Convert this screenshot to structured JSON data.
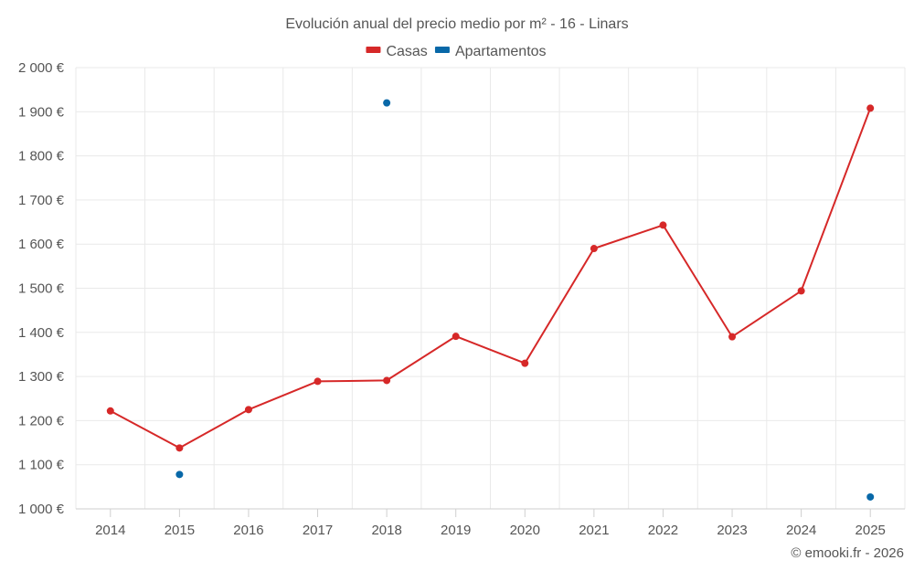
{
  "chart_data": {
    "type": "line",
    "title": "Evolución anual del precio medio por m² - 16 - Linars",
    "categories": [
      "2014",
      "2015",
      "2016",
      "2017",
      "2018",
      "2019",
      "2020",
      "2021",
      "2022",
      "2023",
      "2024",
      "2025"
    ],
    "series": [
      {
        "name": "Casas",
        "color": "#d62828",
        "style": "line",
        "values": [
          1222,
          1138,
          1225,
          1289,
          1291,
          1391,
          1330,
          1590,
          1643,
          1390,
          1494,
          1908
        ]
      },
      {
        "name": "Apartamentos",
        "color": "#0868a8",
        "style": "points",
        "values": [
          null,
          1078,
          null,
          null,
          1920,
          null,
          null,
          null,
          null,
          null,
          null,
          1027
        ]
      }
    ],
    "ylim": [
      1000,
      2000
    ],
    "yticks": [
      1000,
      1100,
      1200,
      1300,
      1400,
      1500,
      1600,
      1700,
      1800,
      1900,
      2000
    ],
    "ytick_labels": [
      "1 000 €",
      "1 100 €",
      "1 200 €",
      "1 300 €",
      "1 400 €",
      "1 500 €",
      "1 600 €",
      "1 700 €",
      "1 800 €",
      "1 900 €",
      "2 000 €"
    ],
    "xlabel": "",
    "ylabel": "",
    "grid": true,
    "legend_position": "top-center",
    "credit": "© emooki.fr - 2026"
  }
}
